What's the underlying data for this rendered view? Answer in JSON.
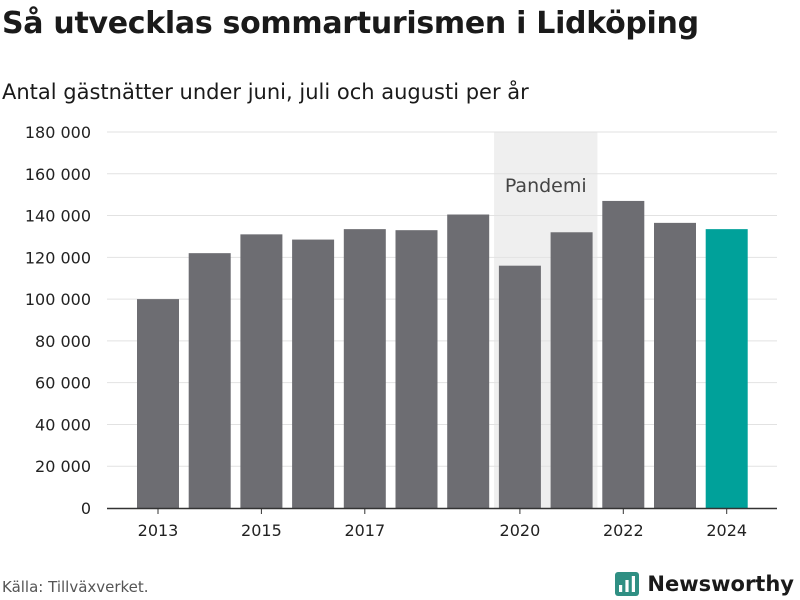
{
  "header": {
    "title": "Så utvecklas sommarturismen i Lidköping",
    "subtitle": "Antal gästnätter under juni, juli och augusti per år"
  },
  "chart_data": {
    "type": "bar",
    "categories": [
      "2013",
      "2014",
      "2015",
      "2016",
      "2017",
      "2018",
      "2019",
      "2020",
      "2021",
      "2022",
      "2023",
      "2024"
    ],
    "values": [
      100000,
      122000,
      131000,
      128500,
      133500,
      133000,
      140500,
      116000,
      132000,
      147000,
      136500,
      133500
    ],
    "xtick_labels": [
      "2013",
      "",
      "2015",
      "",
      "2017",
      "",
      "",
      "2020",
      "",
      "2022",
      "",
      "2024"
    ],
    "ylim": [
      0,
      180000
    ],
    "yticks": [
      0,
      20000,
      40000,
      60000,
      80000,
      100000,
      120000,
      140000,
      160000,
      180000
    ],
    "ytick_labels": [
      "0",
      "20 000",
      "40 000",
      "60 000",
      "80 000",
      "100 000",
      "120 000",
      "140 000",
      "160 000",
      "180 000"
    ],
    "grid": true,
    "highlight_category": "2024",
    "colors": {
      "bar": "#6d6d72",
      "highlight": "#00a19a",
      "band": "#efefef",
      "grid": "#e2e2e2",
      "axis": "#333333"
    },
    "annotation": {
      "label": "Pandemi",
      "from": "2020",
      "to": "2021"
    }
  },
  "footer": {
    "source": "Källa: Tillväxverket.",
    "brand": "Newsworthy",
    "brand_color": "#2f8f83"
  }
}
